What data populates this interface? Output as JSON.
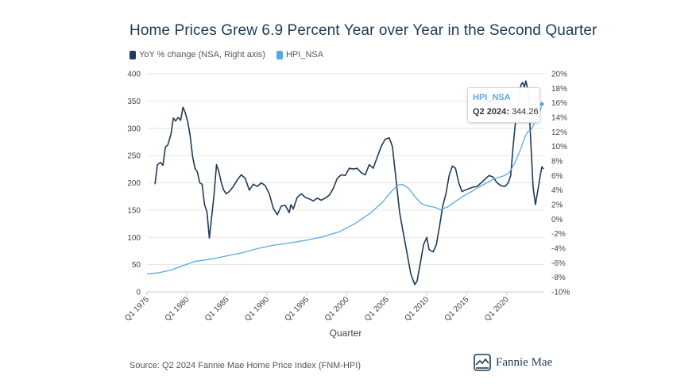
{
  "title": "Home Prices Grew 6.9 Percent Year over Year in the Second Quarter",
  "source": "Source: Q2 2024 Fannie Mae Home Price Index (FNM-HPI)",
  "logo_text": "Fannie Mae",
  "colors": {
    "yoy": "#1f3b57",
    "hpi": "#5aa9e0",
    "grid": "#e6e6e6",
    "axis": "#c8c8c8"
  },
  "tooltip": {
    "series": "HPI_NSA",
    "label": "Q2 2024:",
    "value": "344.26"
  },
  "chart_data": {
    "type": "line",
    "xlabel": "Quarter",
    "ylim_left": [
      0,
      400
    ],
    "ylim_right": [
      -10,
      20
    ],
    "grid": true,
    "legend_position": "top-left",
    "x_ticks": [
      "Q1 1975",
      "Q1 1980",
      "Q1 1985",
      "Q1 1990",
      "Q1 1995",
      "Q1 2000",
      "Q1 2005",
      "Q1 2010",
      "Q1 2015",
      "Q1 2020"
    ],
    "y_left_ticks": [
      "0",
      "50",
      "100",
      "150",
      "200",
      "250",
      "300",
      "350",
      "400"
    ],
    "y_right_ticks": [
      "-10%",
      "-8%",
      "-6%",
      "-4%",
      "-2%",
      "0%",
      "2%",
      "4%",
      "6%",
      "8%",
      "10%",
      "12%",
      "14%",
      "16%",
      "18%",
      "20%"
    ],
    "series": [
      {
        "name": "YoY % change (NSA, Right axis)",
        "axis": "right",
        "points": [
          [
            1976.0,
            4.8
          ],
          [
            1976.3,
            7.5
          ],
          [
            1976.7,
            7.8
          ],
          [
            1977.0,
            7.4
          ],
          [
            1977.3,
            9.9
          ],
          [
            1977.6,
            10.2
          ],
          [
            1978.0,
            11.7
          ],
          [
            1978.3,
            13.9
          ],
          [
            1978.6,
            13.5
          ],
          [
            1978.9,
            14.0
          ],
          [
            1979.2,
            13.6
          ],
          [
            1979.5,
            15.4
          ],
          [
            1979.8,
            14.6
          ],
          [
            1980.1,
            13.4
          ],
          [
            1980.4,
            11.5
          ],
          [
            1980.7,
            8.7
          ],
          [
            1981.0,
            7.0
          ],
          [
            1981.3,
            6.5
          ],
          [
            1981.6,
            5.0
          ],
          [
            1981.9,
            4.8
          ],
          [
            1982.2,
            2.0
          ],
          [
            1982.5,
            1.0
          ],
          [
            1982.8,
            -2.6
          ],
          [
            1983.1,
            0.4
          ],
          [
            1983.4,
            3.5
          ],
          [
            1983.7,
            7.5
          ],
          [
            1984.0,
            6.5
          ],
          [
            1984.3,
            5.0
          ],
          [
            1984.6,
            4.0
          ],
          [
            1984.9,
            3.5
          ],
          [
            1985.3,
            3.8
          ],
          [
            1985.8,
            4.5
          ],
          [
            1986.3,
            5.4
          ],
          [
            1986.8,
            6.1
          ],
          [
            1987.3,
            5.6
          ],
          [
            1987.8,
            4.0
          ],
          [
            1988.3,
            4.8
          ],
          [
            1988.8,
            4.5
          ],
          [
            1989.3,
            5.0
          ],
          [
            1989.8,
            4.6
          ],
          [
            1990.3,
            3.5
          ],
          [
            1990.8,
            1.5
          ],
          [
            1991.3,
            0.6
          ],
          [
            1991.8,
            1.8
          ],
          [
            1992.3,
            1.9
          ],
          [
            1992.8,
            0.9
          ],
          [
            1993.0,
            2.0
          ],
          [
            1993.3,
            1.4
          ],
          [
            1993.8,
            3.0
          ],
          [
            1994.3,
            3.5
          ],
          [
            1994.8,
            3.0
          ],
          [
            1995.3,
            2.8
          ],
          [
            1995.8,
            2.5
          ],
          [
            1996.3,
            2.9
          ],
          [
            1996.8,
            2.6
          ],
          [
            1997.3,
            2.9
          ],
          [
            1997.8,
            3.3
          ],
          [
            1998.3,
            4.2
          ],
          [
            1998.8,
            5.6
          ],
          [
            1999.3,
            6.1
          ],
          [
            1999.8,
            6.0
          ],
          [
            2000.3,
            7.0
          ],
          [
            2000.8,
            6.9
          ],
          [
            2001.3,
            7.0
          ],
          [
            2001.8,
            6.4
          ],
          [
            2002.3,
            6.1
          ],
          [
            2002.8,
            7.5
          ],
          [
            2003.3,
            7.0
          ],
          [
            2003.8,
            8.5
          ],
          [
            2004.3,
            10.0
          ],
          [
            2004.8,
            11.0
          ],
          [
            2005.3,
            11.2
          ],
          [
            2005.7,
            10.0
          ],
          [
            2006.0,
            7.0
          ],
          [
            2006.3,
            4.0
          ],
          [
            2006.6,
            1.0
          ],
          [
            2007.0,
            -1.5
          ],
          [
            2007.5,
            -4.5
          ],
          [
            2008.0,
            -7.5
          ],
          [
            2008.5,
            -9.0
          ],
          [
            2008.8,
            -8.5
          ],
          [
            2009.2,
            -6.0
          ],
          [
            2009.6,
            -3.5
          ],
          [
            2010.0,
            -2.5
          ],
          [
            2010.3,
            -4.2
          ],
          [
            2010.8,
            -4.5
          ],
          [
            2011.2,
            -3.5
          ],
          [
            2011.6,
            -1.0
          ],
          [
            2012.0,
            1.8
          ],
          [
            2012.4,
            3.5
          ],
          [
            2012.8,
            6.0
          ],
          [
            2013.2,
            7.3
          ],
          [
            2013.6,
            7.0
          ],
          [
            2014.0,
            5.0
          ],
          [
            2014.4,
            3.8
          ],
          [
            2014.8,
            4.0
          ],
          [
            2015.3,
            4.2
          ],
          [
            2015.8,
            4.4
          ],
          [
            2016.3,
            4.5
          ],
          [
            2016.8,
            5.0
          ],
          [
            2017.3,
            5.5
          ],
          [
            2017.8,
            6.0
          ],
          [
            2018.3,
            5.8
          ],
          [
            2018.8,
            5.0
          ],
          [
            2019.3,
            4.6
          ],
          [
            2019.8,
            4.5
          ],
          [
            2020.2,
            5.0
          ],
          [
            2020.5,
            6.0
          ],
          [
            2020.8,
            10.0
          ],
          [
            2021.2,
            14.5
          ],
          [
            2021.5,
            16.5
          ],
          [
            2021.8,
            18.5
          ],
          [
            2022.0,
            18.8
          ],
          [
            2022.2,
            18.2
          ],
          [
            2022.4,
            19.0
          ],
          [
            2022.7,
            17.5
          ],
          [
            2023.0,
            11.0
          ],
          [
            2023.3,
            4.5
          ],
          [
            2023.6,
            2.0
          ],
          [
            2023.9,
            4.0
          ],
          [
            2024.2,
            6.0
          ],
          [
            2024.4,
            7.2
          ],
          [
            2024.6,
            6.9
          ]
        ]
      },
      {
        "name": "HPI_NSA",
        "axis": "left",
        "points": [
          [
            1975.0,
            33
          ],
          [
            1976.5,
            35
          ],
          [
            1978.0,
            40
          ],
          [
            1979.5,
            48
          ],
          [
            1981.0,
            56
          ],
          [
            1983.0,
            60
          ],
          [
            1985.0,
            66
          ],
          [
            1987.0,
            72
          ],
          [
            1989.0,
            80
          ],
          [
            1991.0,
            86
          ],
          [
            1993.0,
            90
          ],
          [
            1995.0,
            95
          ],
          [
            1997.0,
            101
          ],
          [
            1999.0,
            110
          ],
          [
            2001.0,
            125
          ],
          [
            2003.0,
            145
          ],
          [
            2004.5,
            165
          ],
          [
            2005.5,
            183
          ],
          [
            2006.4,
            196
          ],
          [
            2007.0,
            197
          ],
          [
            2007.8,
            189
          ],
          [
            2008.5,
            175
          ],
          [
            2009.3,
            162
          ],
          [
            2010.0,
            158
          ],
          [
            2011.0,
            155
          ],
          [
            2011.7,
            151
          ],
          [
            2012.5,
            155
          ],
          [
            2013.5,
            165
          ],
          [
            2014.5,
            175
          ],
          [
            2015.5,
            183
          ],
          [
            2016.5,
            192
          ],
          [
            2017.5,
            200
          ],
          [
            2018.5,
            208
          ],
          [
            2019.5,
            212
          ],
          [
            2020.3,
            218
          ],
          [
            2021.0,
            236
          ],
          [
            2021.7,
            260
          ],
          [
            2022.3,
            285
          ],
          [
            2022.7,
            295
          ],
          [
            2023.0,
            296
          ],
          [
            2023.5,
            310
          ],
          [
            2024.0,
            322
          ],
          [
            2024.4,
            344.26
          ]
        ]
      }
    ]
  }
}
